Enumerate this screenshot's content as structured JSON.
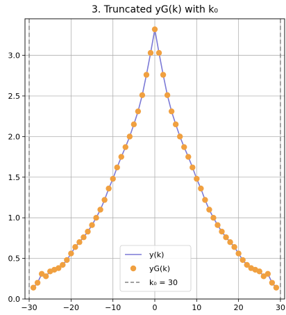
{
  "chart_data": {
    "type": "line",
    "title": "3. Truncated yG(k) with k₀",
    "xlabel": "",
    "ylabel": "",
    "xlim": [
      -31,
      31
    ],
    "ylim": [
      0,
      3.45
    ],
    "xticks": [
      -30,
      -20,
      -10,
      0,
      10,
      20,
      30
    ],
    "xtick_labels": [
      "−30",
      "−20",
      "−10",
      "0",
      "10",
      "20",
      "30"
    ],
    "yticks": [
      0.0,
      0.5,
      1.0,
      1.5,
      2.0,
      2.5,
      3.0
    ],
    "ytick_labels": [
      "0.0",
      "0.5",
      "1.0",
      "1.5",
      "2.0",
      "2.5",
      "3.0"
    ],
    "grid": true,
    "legend_position": "bottom-center",
    "vlines": [
      -30,
      30
    ],
    "x": [
      -29,
      -28,
      -27,
      -26,
      -25,
      -24,
      -23,
      -22,
      -21,
      -20,
      -19,
      -18,
      -17,
      -16,
      -15,
      -14,
      -13,
      -12,
      -11,
      -10,
      -9,
      -8,
      -7,
      -6,
      -5,
      -4,
      -3,
      -2,
      -1,
      0,
      1,
      2,
      3,
      4,
      5,
      6,
      7,
      8,
      9,
      10,
      11,
      12,
      13,
      14,
      15,
      16,
      17,
      18,
      19,
      20,
      21,
      22,
      23,
      24,
      25,
      26,
      27,
      28,
      29
    ],
    "series": [
      {
        "name": "y(k)",
        "style": "line",
        "color": "#7b79d6",
        "values": [
          0.14,
          0.2,
          0.31,
          0.28,
          0.34,
          0.36,
          0.38,
          0.42,
          0.48,
          0.56,
          0.64,
          0.7,
          0.76,
          0.83,
          0.91,
          1.0,
          1.1,
          1.22,
          1.36,
          1.48,
          1.62,
          1.75,
          1.87,
          2.0,
          2.15,
          2.31,
          2.51,
          2.76,
          3.03,
          3.32,
          3.03,
          2.76,
          2.51,
          2.31,
          2.15,
          2.0,
          1.87,
          1.75,
          1.62,
          1.48,
          1.36,
          1.22,
          1.1,
          1.0,
          0.91,
          0.83,
          0.76,
          0.7,
          0.64,
          0.56,
          0.48,
          0.42,
          0.38,
          0.36,
          0.34,
          0.28,
          0.31,
          0.2,
          0.14
        ]
      },
      {
        "name": "yG(k)",
        "style": "markers",
        "color": "#f0a040",
        "values": [
          0.14,
          0.2,
          0.31,
          0.28,
          0.34,
          0.36,
          0.38,
          0.42,
          0.48,
          0.56,
          0.64,
          0.7,
          0.76,
          0.83,
          0.91,
          1.0,
          1.1,
          1.22,
          1.36,
          1.48,
          1.62,
          1.75,
          1.87,
          2.0,
          2.15,
          2.31,
          2.51,
          2.76,
          3.03,
          3.32,
          3.03,
          2.76,
          2.51,
          2.31,
          2.15,
          2.0,
          1.87,
          1.75,
          1.62,
          1.48,
          1.36,
          1.22,
          1.1,
          1.0,
          0.91,
          0.83,
          0.76,
          0.7,
          0.64,
          0.56,
          0.48,
          0.42,
          0.38,
          0.36,
          0.34,
          0.28,
          0.31,
          0.2,
          0.14
        ]
      }
    ],
    "legend": [
      {
        "label": "y(k)",
        "kind": "line",
        "color": "#7b79d6"
      },
      {
        "label": "yG(k)",
        "kind": "marker",
        "color": "#f0a040"
      },
      {
        "label": "k₀ = 30",
        "kind": "dashed",
        "color": "#808080"
      }
    ]
  }
}
